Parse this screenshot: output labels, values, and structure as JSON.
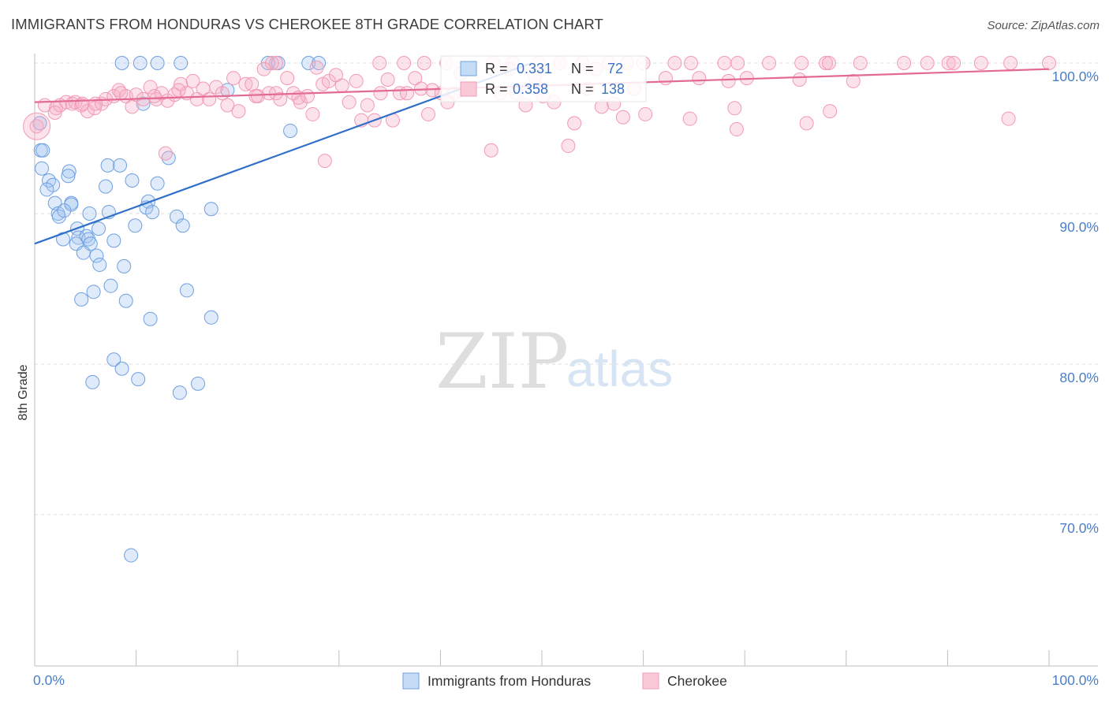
{
  "title": "IMMIGRANTS FROM HONDURAS VS CHEROKEE 8TH GRADE CORRELATION CHART",
  "source": "Source: ZipAtlas.com",
  "watermark": {
    "zip": "ZIP",
    "atlas": "atlas"
  },
  "chart_data": {
    "type": "scatter",
    "title": "IMMIGRANTS FROM HONDURAS VS CHEROKEE 8TH GRADE CORRELATION CHART",
    "ylabel": "8th Grade",
    "xlabel": "",
    "xlim": [
      0,
      100
    ],
    "ylim": [
      60.3,
      100.5
    ],
    "y_ticks": [
      {
        "value": 100,
        "label": "100.0%"
      },
      {
        "value": 90,
        "label": "90.0%"
      },
      {
        "value": 80,
        "label": "80.0%"
      },
      {
        "value": 70,
        "label": "70.0%"
      }
    ],
    "x_ticks": [
      {
        "value": 0,
        "label": "0.0%"
      },
      {
        "value": 100,
        "label": "100.0%"
      }
    ],
    "x_minor_ticks": [
      10,
      20,
      30,
      40,
      50,
      60,
      70,
      80,
      90,
      100
    ],
    "series": [
      {
        "name": "Immigrants from Honduras",
        "color": "#6fa0e0",
        "line_color": "#2f6fca",
        "R": "0.331",
        "N": "72",
        "trend": {
          "x0": 0,
          "y0": 88.0,
          "x1": 49,
          "y1": 100.0
        },
        "points": [
          [
            8.6,
            100
          ],
          [
            10.4,
            100
          ],
          [
            12.1,
            100
          ],
          [
            14.4,
            100
          ],
          [
            23.0,
            100
          ],
          [
            24.0,
            100
          ],
          [
            27.0,
            100
          ],
          [
            28.0,
            100
          ],
          [
            0.5,
            96.0
          ],
          [
            0.6,
            94.2
          ],
          [
            0.8,
            94.2
          ],
          [
            0.7,
            93.0
          ],
          [
            3.4,
            92.8
          ],
          [
            1.4,
            92.2
          ],
          [
            3.3,
            92.5
          ],
          [
            1.8,
            91.9
          ],
          [
            1.2,
            91.6
          ],
          [
            7.2,
            93.2
          ],
          [
            8.4,
            93.2
          ],
          [
            13.2,
            93.7
          ],
          [
            7.0,
            91.8
          ],
          [
            9.6,
            92.2
          ],
          [
            12.1,
            92.0
          ],
          [
            3.6,
            90.7
          ],
          [
            3.6,
            90.6
          ],
          [
            2.0,
            90.7
          ],
          [
            11.2,
            90.8
          ],
          [
            11.0,
            90.4
          ],
          [
            2.3,
            90.0
          ],
          [
            2.4,
            89.8
          ],
          [
            2.9,
            90.2
          ],
          [
            5.4,
            90.0
          ],
          [
            7.3,
            90.1
          ],
          [
            11.6,
            90.1
          ],
          [
            17.4,
            90.3
          ],
          [
            9.9,
            89.2
          ],
          [
            14.0,
            89.8
          ],
          [
            14.6,
            89.2
          ],
          [
            4.2,
            89.0
          ],
          [
            6.3,
            89.0
          ],
          [
            2.8,
            88.3
          ],
          [
            4.3,
            88.4
          ],
          [
            4.1,
            88.0
          ],
          [
            5.1,
            88.5
          ],
          [
            5.3,
            88.3
          ],
          [
            5.5,
            88.0
          ],
          [
            7.8,
            88.2
          ],
          [
            4.8,
            87.4
          ],
          [
            6.1,
            87.2
          ],
          [
            6.4,
            86.6
          ],
          [
            8.8,
            86.5
          ],
          [
            7.5,
            85.2
          ],
          [
            4.6,
            84.3
          ],
          [
            5.8,
            84.8
          ],
          [
            9.0,
            84.2
          ],
          [
            15.0,
            84.9
          ],
          [
            11.4,
            83.0
          ],
          [
            17.4,
            83.1
          ],
          [
            7.8,
            80.3
          ],
          [
            8.6,
            79.7
          ],
          [
            5.7,
            78.8
          ],
          [
            10.2,
            79.0
          ],
          [
            14.3,
            78.1
          ],
          [
            16.1,
            78.7
          ],
          [
            9.5,
            67.3
          ],
          [
            19.0,
            98.2
          ],
          [
            25.2,
            95.5
          ],
          [
            10.7,
            97.3
          ]
        ]
      },
      {
        "name": "Cherokee",
        "color": "#f29ab5",
        "line_color": "#e36a93",
        "R": "0.358",
        "N": "138",
        "trend": {
          "x0": 0,
          "y0": 97.4,
          "x1": 100,
          "y1": 99.6
        },
        "points": [
          [
            23.4,
            100
          ],
          [
            23.8,
            100
          ],
          [
            34.0,
            100
          ],
          [
            36.4,
            100
          ],
          [
            38.4,
            100
          ],
          [
            40.6,
            100
          ],
          [
            45.2,
            100
          ],
          [
            47.1,
            100
          ],
          [
            49.7,
            100
          ],
          [
            51.8,
            100
          ],
          [
            54.0,
            100
          ],
          [
            56.6,
            100
          ],
          [
            58.4,
            100
          ],
          [
            60.0,
            100
          ],
          [
            63.1,
            100
          ],
          [
            64.7,
            100
          ],
          [
            68.0,
            100
          ],
          [
            69.3,
            100
          ],
          [
            72.4,
            100
          ],
          [
            75.6,
            100
          ],
          [
            78.0,
            100
          ],
          [
            78.3,
            100
          ],
          [
            81.4,
            100
          ],
          [
            85.7,
            100
          ],
          [
            88.0,
            100
          ],
          [
            90.1,
            100
          ],
          [
            90.6,
            100
          ],
          [
            93.3,
            100
          ],
          [
            96.2,
            100
          ],
          [
            100.0,
            100
          ],
          [
            0.2,
            95.8
          ],
          [
            1.0,
            97.2
          ],
          [
            2.1,
            97.0
          ],
          [
            2.5,
            97.2
          ],
          [
            3.1,
            97.4
          ],
          [
            3.7,
            97.3
          ],
          [
            4.0,
            97.4
          ],
          [
            4.6,
            97.2
          ],
          [
            5.2,
            96.8
          ],
          [
            5.9,
            97.0
          ],
          [
            6.6,
            97.3
          ],
          [
            7.0,
            97.6
          ],
          [
            7.8,
            97.8
          ],
          [
            8.3,
            98.2
          ],
          [
            9.0,
            97.8
          ],
          [
            9.6,
            97.1
          ],
          [
            10.0,
            97.9
          ],
          [
            10.7,
            97.6
          ],
          [
            11.4,
            98.4
          ],
          [
            12.0,
            97.6
          ],
          [
            12.5,
            98.0
          ],
          [
            13.1,
            97.5
          ],
          [
            13.8,
            97.9
          ],
          [
            14.4,
            98.6
          ],
          [
            15.0,
            98.0
          ],
          [
            15.6,
            98.8
          ],
          [
            16.0,
            97.6
          ],
          [
            16.6,
            98.3
          ],
          [
            17.2,
            97.6
          ],
          [
            17.9,
            98.4
          ],
          [
            18.5,
            98.0
          ],
          [
            19.0,
            97.2
          ],
          [
            19.6,
            99.0
          ],
          [
            20.1,
            96.8
          ],
          [
            20.8,
            98.6
          ],
          [
            21.4,
            98.6
          ],
          [
            22.0,
            97.8
          ],
          [
            22.6,
            99.6
          ],
          [
            23.1,
            98.0
          ],
          [
            23.8,
            98.0
          ],
          [
            24.2,
            97.6
          ],
          [
            24.9,
            99.0
          ],
          [
            25.5,
            98.0
          ],
          [
            26.2,
            97.4
          ],
          [
            26.9,
            97.8
          ],
          [
            27.4,
            96.6
          ],
          [
            27.8,
            99.7
          ],
          [
            28.4,
            98.6
          ],
          [
            29.0,
            98.8
          ],
          [
            29.7,
            99.2
          ],
          [
            30.3,
            98.5
          ],
          [
            31.0,
            97.4
          ],
          [
            31.7,
            98.8
          ],
          [
            32.2,
            96.2
          ],
          [
            32.8,
            97.2
          ],
          [
            33.5,
            96.2
          ],
          [
            34.1,
            98.0
          ],
          [
            34.8,
            98.9
          ],
          [
            35.3,
            96.2
          ],
          [
            36.0,
            98.0
          ],
          [
            36.7,
            98.0
          ],
          [
            37.5,
            99.0
          ],
          [
            38.1,
            98.3
          ],
          [
            38.8,
            96.6
          ],
          [
            39.2,
            98.2
          ],
          [
            40.1,
            98.0
          ],
          [
            40.7,
            97.4
          ],
          [
            41.4,
            98.0
          ],
          [
            42.0,
            99.3
          ],
          [
            45.0,
            94.2
          ],
          [
            45.9,
            98.0
          ],
          [
            46.8,
            99.6
          ],
          [
            47.5,
            98.0
          ],
          [
            48.4,
            97.2
          ],
          [
            49.3,
            99.1
          ],
          [
            50.1,
            97.8
          ],
          [
            51.2,
            97.4
          ],
          [
            52.6,
            94.5
          ],
          [
            53.2,
            96.0
          ],
          [
            54.5,
            98.3
          ],
          [
            55.3,
            99.6
          ],
          [
            55.9,
            97.1
          ],
          [
            57.1,
            97.3
          ],
          [
            58.0,
            96.4
          ],
          [
            59.1,
            98.3
          ],
          [
            60.2,
            96.6
          ],
          [
            62.2,
            99.0
          ],
          [
            64.6,
            96.3
          ],
          [
            65.5,
            99.0
          ],
          [
            68.4,
            98.8
          ],
          [
            69.0,
            97.0
          ],
          [
            69.2,
            95.6
          ],
          [
            70.2,
            99.0
          ],
          [
            75.4,
            98.9
          ],
          [
            76.1,
            96.0
          ],
          [
            78.4,
            96.8
          ],
          [
            80.7,
            98.8
          ],
          [
            96.0,
            96.3
          ],
          [
            12.9,
            94.0
          ],
          [
            28.6,
            93.5
          ],
          [
            2.0,
            96.7
          ],
          [
            4.7,
            97.3
          ],
          [
            6.0,
            97.3
          ],
          [
            8.5,
            98.0
          ],
          [
            11.8,
            97.8
          ],
          [
            14.2,
            98.2
          ],
          [
            21.8,
            97.8
          ],
          [
            26.0,
            97.7
          ]
        ]
      }
    ]
  }
}
